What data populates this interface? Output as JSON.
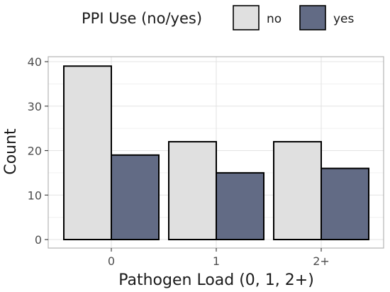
{
  "chart_data": {
    "type": "bar",
    "categories": [
      "0",
      "1",
      "2+"
    ],
    "series": [
      {
        "name": "no",
        "values": [
          39,
          22,
          22
        ],
        "color": "#e0e0e0"
      },
      {
        "name": "yes",
        "values": [
          19,
          15,
          16
        ],
        "color": "#626b85"
      }
    ],
    "title": "",
    "xlabel": "Pathogen Load (0, 1, 2+)",
    "ylabel": "Count",
    "ylim": [
      0,
      40
    ],
    "yticks": [
      0,
      10,
      20,
      30,
      40
    ],
    "grid": true,
    "legend": {
      "title": "PPI Use (no/yes)",
      "position": "top"
    }
  }
}
